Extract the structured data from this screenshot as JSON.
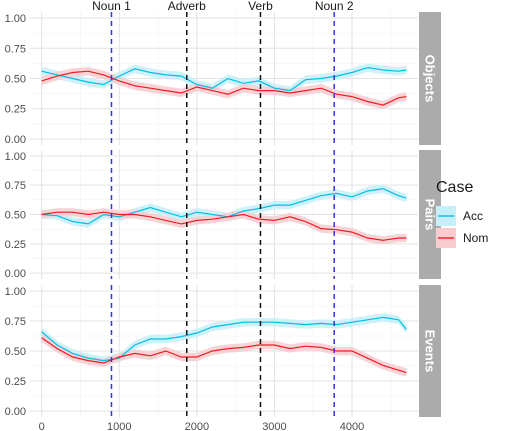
{
  "chart_data": {
    "type": "line",
    "xlim": [
      -150,
      4850
    ],
    "ylim": [
      -0.05,
      1.05
    ],
    "x_ticks": [
      0,
      1000,
      2000,
      3000,
      4000
    ],
    "y_ticks": [
      0.0,
      0.25,
      0.5,
      0.75,
      1.0
    ],
    "y_tick_labels": [
      "0.00",
      "0.25",
      "0.50",
      "0.75",
      "1.00"
    ],
    "grid": true,
    "legend_position": "right",
    "legend": {
      "title": "Case",
      "entries": [
        {
          "label": "Acc",
          "color": "#00bfe6",
          "band": "#c6eef9"
        },
        {
          "label": "Nom",
          "color": "#ee1c25",
          "band": "#f7cdd0"
        }
      ]
    },
    "vlines": [
      {
        "label": "Noun 1",
        "x": 900,
        "color": "#3636d6"
      },
      {
        "label": "Adverb",
        "x": 1870,
        "color": "#111111"
      },
      {
        "label": "Verb",
        "x": 2820,
        "color": "#111111"
      },
      {
        "label": "Noun 2",
        "x": 3770,
        "color": "#3636d6"
      }
    ],
    "x": [
      0,
      200,
      400,
      600,
      800,
      1000,
      1200,
      1400,
      1600,
      1800,
      2000,
      2200,
      2400,
      2600,
      2800,
      3000,
      3200,
      3400,
      3600,
      3800,
      4000,
      4200,
      4400,
      4600,
      4700
    ],
    "facets": [
      {
        "label": "Objects",
        "series": [
          {
            "name": "Acc",
            "values": [
              0.56,
              0.53,
              0.5,
              0.47,
              0.45,
              0.52,
              0.58,
              0.55,
              0.53,
              0.52,
              0.45,
              0.42,
              0.5,
              0.46,
              0.48,
              0.42,
              0.4,
              0.49,
              0.5,
              0.52,
              0.55,
              0.59,
              0.57,
              0.56,
              0.57
            ]
          },
          {
            "name": "Nom",
            "values": [
              0.48,
              0.52,
              0.55,
              0.56,
              0.53,
              0.48,
              0.44,
              0.42,
              0.4,
              0.38,
              0.43,
              0.4,
              0.37,
              0.42,
              0.4,
              0.4,
              0.38,
              0.4,
              0.42,
              0.37,
              0.35,
              0.31,
              0.28,
              0.34,
              0.35
            ]
          }
        ]
      },
      {
        "label": "Pairs",
        "series": [
          {
            "name": "Acc",
            "values": [
              0.5,
              0.49,
              0.44,
              0.42,
              0.5,
              0.48,
              0.52,
              0.56,
              0.52,
              0.48,
              0.52,
              0.5,
              0.48,
              0.53,
              0.55,
              0.58,
              0.58,
              0.62,
              0.66,
              0.68,
              0.65,
              0.7,
              0.72,
              0.66,
              0.64
            ]
          },
          {
            "name": "Nom",
            "values": [
              0.5,
              0.52,
              0.52,
              0.5,
              0.52,
              0.5,
              0.5,
              0.48,
              0.45,
              0.42,
              0.45,
              0.46,
              0.48,
              0.5,
              0.46,
              0.45,
              0.48,
              0.44,
              0.38,
              0.37,
              0.35,
              0.3,
              0.28,
              0.3,
              0.3
            ]
          }
        ]
      },
      {
        "label": "Events",
        "series": [
          {
            "name": "Acc",
            "values": [
              0.66,
              0.55,
              0.48,
              0.44,
              0.42,
              0.44,
              0.55,
              0.6,
              0.6,
              0.62,
              0.65,
              0.7,
              0.72,
              0.74,
              0.74,
              0.74,
              0.73,
              0.72,
              0.73,
              0.72,
              0.74,
              0.76,
              0.78,
              0.76,
              0.68
            ]
          },
          {
            "name": "Nom",
            "values": [
              0.61,
              0.52,
              0.45,
              0.42,
              0.4,
              0.45,
              0.48,
              0.46,
              0.5,
              0.45,
              0.45,
              0.5,
              0.52,
              0.53,
              0.55,
              0.55,
              0.52,
              0.54,
              0.53,
              0.5,
              0.5,
              0.44,
              0.38,
              0.34,
              0.32
            ]
          }
        ]
      }
    ]
  }
}
